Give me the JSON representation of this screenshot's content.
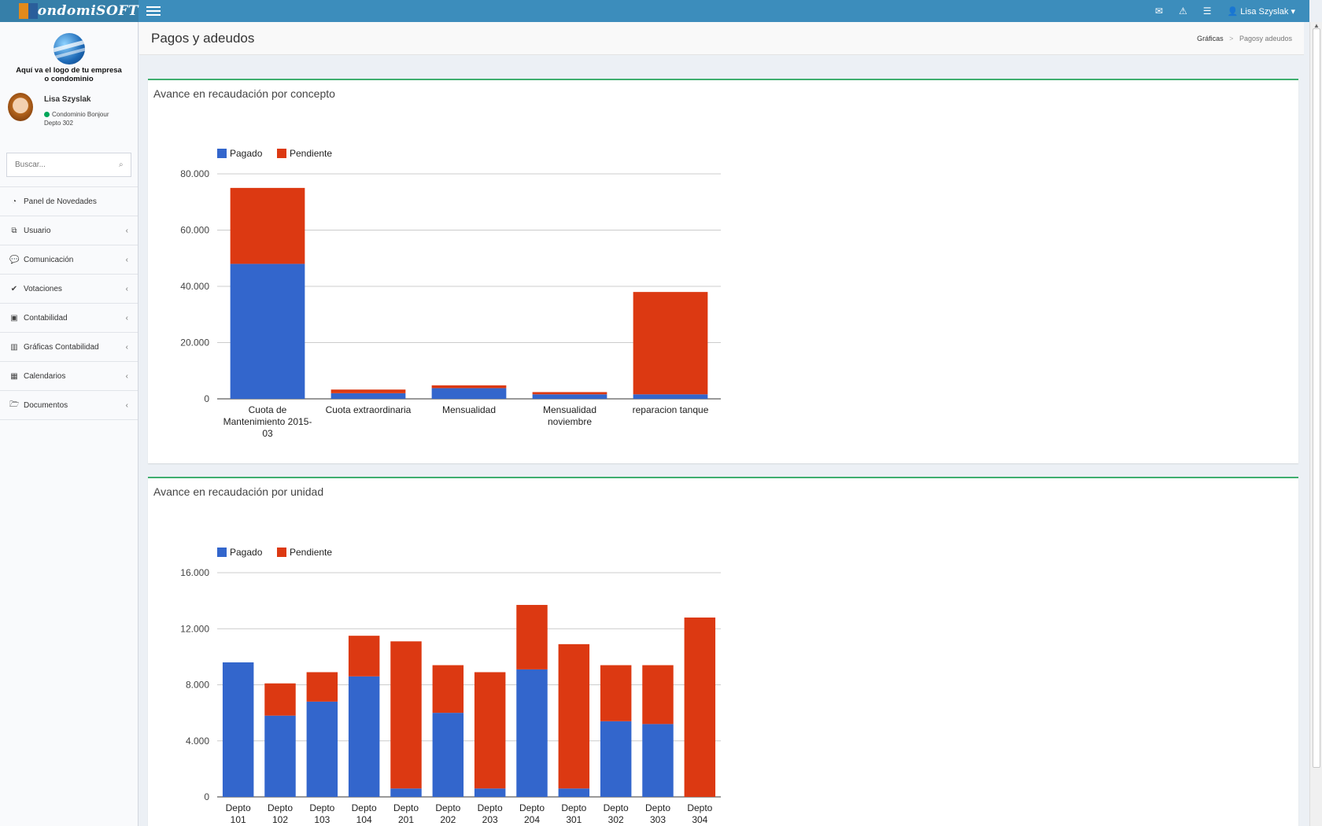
{
  "app": {
    "name": "CondomiSOFT"
  },
  "topbar": {
    "user_name": "Lisa Szyslak"
  },
  "sidebar": {
    "brand_text_line1": "Aquí va el logo de tu empresa",
    "brand_text_line2": "o condominio",
    "user": {
      "name": "Lisa Szyslak",
      "condo": "Condominio Bonjour",
      "unit": "Depto 302"
    },
    "search_placeholder": "Buscar...",
    "items": [
      {
        "label": "Panel de Novedades",
        "icon": "dashboard-icon"
      },
      {
        "label": "Usuario",
        "icon": "sitemap-icon"
      },
      {
        "label": "Comunicación",
        "icon": "comments-icon"
      },
      {
        "label": "Votaciones",
        "icon": "check-icon"
      },
      {
        "label": "Contabilidad",
        "icon": "money-icon"
      },
      {
        "label": "Gráficas Contabilidad",
        "icon": "bar-chart-icon"
      },
      {
        "label": "Calendarios",
        "icon": "calendar-icon"
      },
      {
        "label": "Documentos",
        "icon": "folder-open-icon"
      }
    ]
  },
  "header": {
    "title": "Pagos y adeudos",
    "breadcrumb": [
      "Gráficas",
      "Pagosy adeudos"
    ]
  },
  "colors": {
    "pagado": "#3366cc",
    "pendiente": "#dc3912",
    "box_border": "#3fae6e",
    "topbar": "#3c8dbc"
  },
  "chart_data": [
    {
      "type": "bar",
      "stacked": true,
      "title": "Avance en recaudación por concepto",
      "categories": [
        "Cuota de Mantenimiento 2015-03",
        "Cuota extraordinaria",
        "Mensualidad",
        "Mensualidad noviembre",
        "reparacion tanque"
      ],
      "category_lines": [
        [
          "Cuota de",
          "Mantenimiento 2015-",
          "03"
        ],
        [
          "Cuota extraordinaria"
        ],
        [
          "Mensualidad"
        ],
        [
          "Mensualidad",
          "noviembre"
        ],
        [
          "reparacion tanque"
        ]
      ],
      "series": [
        {
          "name": "Pagado",
          "values": [
            48000,
            2000,
            3800,
            1600,
            1600
          ]
        },
        {
          "name": "Pendiente",
          "values": [
            27000,
            1300,
            1000,
            800,
            36400
          ]
        }
      ],
      "yticks": [
        "0",
        "20.000",
        "40.000",
        "60.000",
        "80.000"
      ],
      "ylim": [
        0,
        80000
      ],
      "legend": "top-left",
      "grid": true
    },
    {
      "type": "bar",
      "stacked": true,
      "title": "Avance en recaudación por unidad",
      "categories": [
        "Depto 101",
        "Depto 102",
        "Depto 103",
        "Depto 104",
        "Depto 201",
        "Depto 202",
        "Depto 203",
        "Depto 204",
        "Depto 301",
        "Depto 302",
        "Depto 303",
        "Depto 304"
      ],
      "category_lines": [
        [
          "Depto",
          "101"
        ],
        [
          "Depto",
          "102"
        ],
        [
          "Depto",
          "103"
        ],
        [
          "Depto",
          "104"
        ],
        [
          "Depto",
          "201"
        ],
        [
          "Depto",
          "202"
        ],
        [
          "Depto",
          "203"
        ],
        [
          "Depto",
          "204"
        ],
        [
          "Depto",
          "301"
        ],
        [
          "Depto",
          "302"
        ],
        [
          "Depto",
          "303"
        ],
        [
          "Depto",
          "304"
        ]
      ],
      "series": [
        {
          "name": "Pagado",
          "values": [
            9600,
            5800,
            6800,
            8600,
            600,
            6000,
            600,
            9100,
            600,
            5400,
            5200,
            0
          ]
        },
        {
          "name": "Pendiente",
          "values": [
            0,
            2300,
            2100,
            2900,
            10500,
            3400,
            8300,
            4600,
            10300,
            4000,
            4200,
            12800
          ]
        }
      ],
      "yticks": [
        "0",
        "4.000",
        "8.000",
        "12.000",
        "16.000"
      ],
      "ylim": [
        0,
        16000
      ],
      "legend": "top-left",
      "grid": true
    }
  ]
}
